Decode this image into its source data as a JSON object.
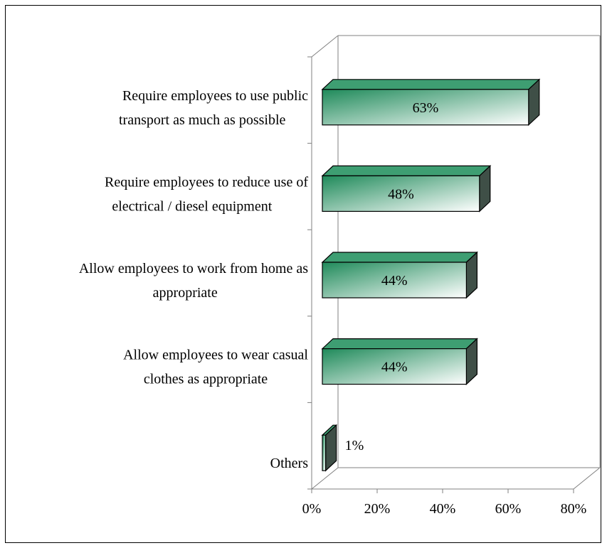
{
  "chart_data": {
    "type": "bar",
    "orientation": "horizontal",
    "three_d": true,
    "categories": [
      [
        "Require employees to use public",
        "transport as much as possible"
      ],
      [
        "Require employees to reduce use of",
        "electrical / diesel equipment"
      ],
      [
        "Allow employees to work from home as",
        "appropriate"
      ],
      [
        "Allow employees to wear casual",
        "clothes as appropriate"
      ],
      [
        "Others"
      ]
    ],
    "values": [
      63,
      48,
      44,
      44,
      1
    ],
    "data_labels": [
      "63%",
      "48%",
      "44%",
      "44%",
      "1%"
    ],
    "x_ticks": [
      "0%",
      "20%",
      "40%",
      "60%",
      "80%"
    ],
    "xlim": [
      0,
      80
    ],
    "title": "",
    "xlabel": "",
    "ylabel": "",
    "grid": false,
    "legend": "none",
    "colors": {
      "bar_gradient_start": "#1f8a5a",
      "bar_gradient_end": "#ffffff",
      "bar_top": "#3e9e72",
      "bar_side": "#3f4f47",
      "bar_outline": "#000000",
      "axis_line": "#808080"
    }
  }
}
